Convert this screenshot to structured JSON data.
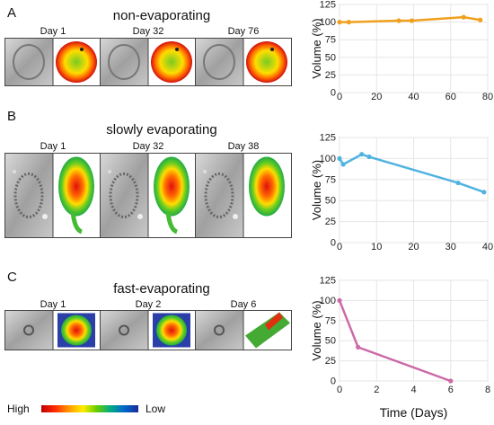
{
  "rows": [
    {
      "letter": "A",
      "title": "non-evaporating",
      "days": [
        "Day 1",
        "Day 32",
        "Day 76"
      ]
    },
    {
      "letter": "B",
      "title": "slowly evaporating",
      "days": [
        "Day 1",
        "Day 32",
        "Day 38"
      ]
    },
    {
      "letter": "C",
      "title": "fast-evaporating",
      "days": [
        "Day 1",
        "Day 2",
        "Day 6"
      ]
    }
  ],
  "colorbar": {
    "high": "High",
    "low": "Low"
  },
  "chart_data": [
    {
      "type": "line",
      "ylabel": "Volume (%)",
      "xlabel": "",
      "color": "#f0a01c",
      "xlim": [
        0,
        80
      ],
      "ylim": [
        0,
        125
      ],
      "xticks": [
        0,
        20,
        40,
        60,
        80
      ],
      "yticks": [
        0,
        25,
        50,
        75,
        100,
        125
      ],
      "x": [
        0,
        5,
        32,
        39,
        67,
        76
      ],
      "y": [
        100,
        100,
        102,
        102,
        107,
        103
      ]
    },
    {
      "type": "line",
      "ylabel": "Volume (%)",
      "xlabel": "",
      "color": "#4fb3e0",
      "xlim": [
        0,
        40
      ],
      "ylim": [
        0,
        125
      ],
      "xticks": [
        0,
        10,
        20,
        30,
        40
      ],
      "yticks": [
        0,
        25,
        50,
        75,
        100,
        125
      ],
      "x": [
        0,
        1,
        6,
        8,
        32,
        39
      ],
      "y": [
        100,
        93,
        105,
        102,
        71,
        60
      ]
    },
    {
      "type": "line",
      "ylabel": "Volume (%)",
      "xlabel": "Time (Days)",
      "color": "#cc6aa8",
      "xlim": [
        0,
        8
      ],
      "ylim": [
        0,
        125
      ],
      "xticks": [
        0,
        2,
        4,
        6,
        8
      ],
      "yticks": [
        0,
        25,
        50,
        75,
        100,
        125
      ],
      "x": [
        0,
        1,
        6
      ],
      "y": [
        100,
        42,
        0
      ]
    }
  ]
}
